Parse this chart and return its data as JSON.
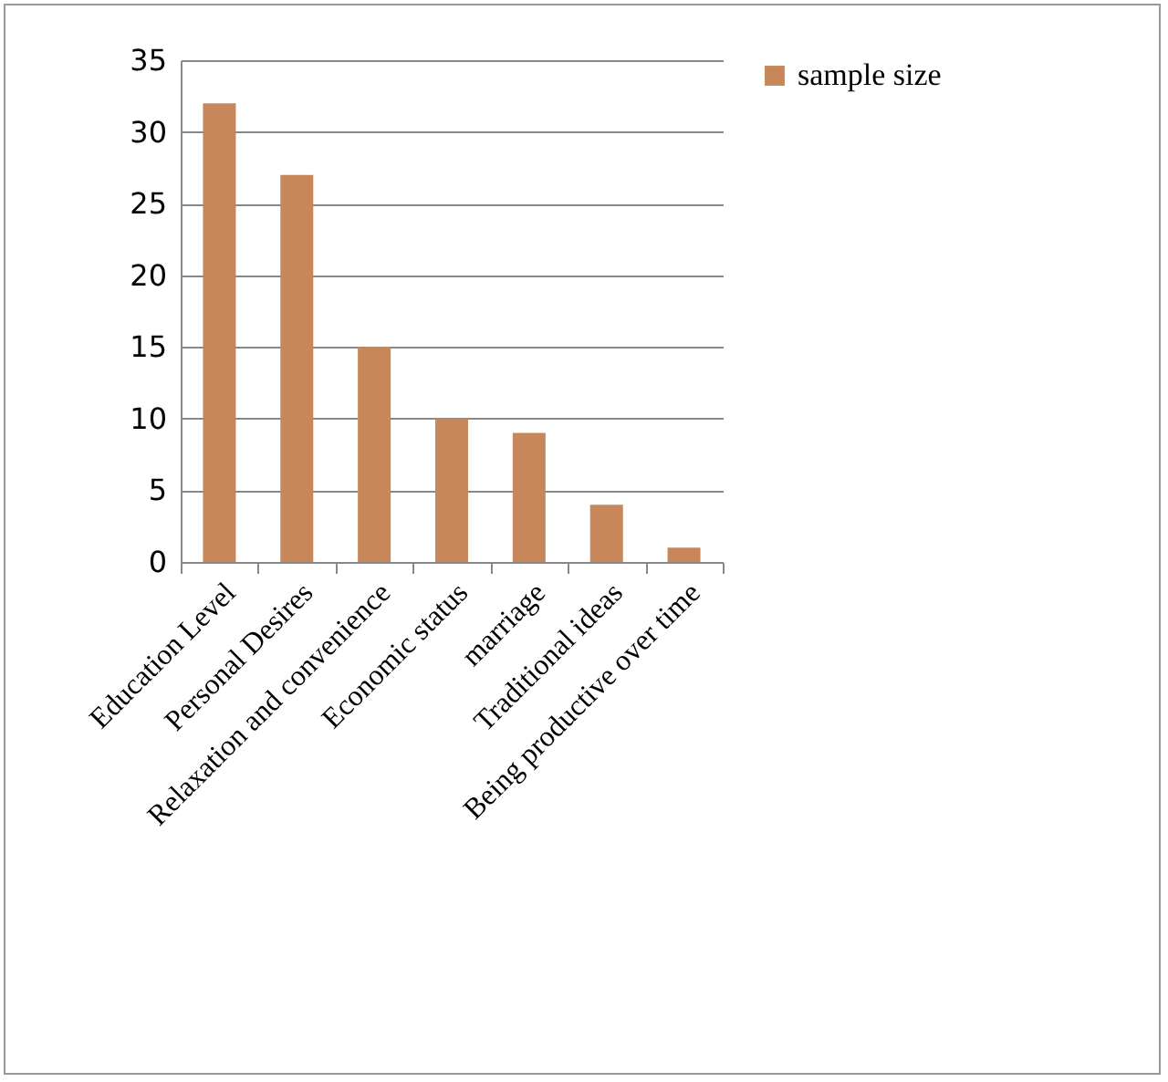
{
  "chart_data": {
    "type": "bar",
    "categories": [
      "Education Level",
      "Personal Desires",
      "Relaxation and convenience",
      "Economic status",
      "marriage",
      "Traditional ideas",
      "Being productive over time"
    ],
    "series": [
      {
        "name": "sample size",
        "color": "#c8875a",
        "values": [
          32,
          27,
          15,
          10,
          9,
          4,
          1
        ]
      }
    ],
    "ylim": [
      0,
      35
    ],
    "yticks": [
      0,
      5,
      10,
      15,
      20,
      25,
      30,
      35
    ],
    "grid": "y",
    "legend": "right"
  }
}
